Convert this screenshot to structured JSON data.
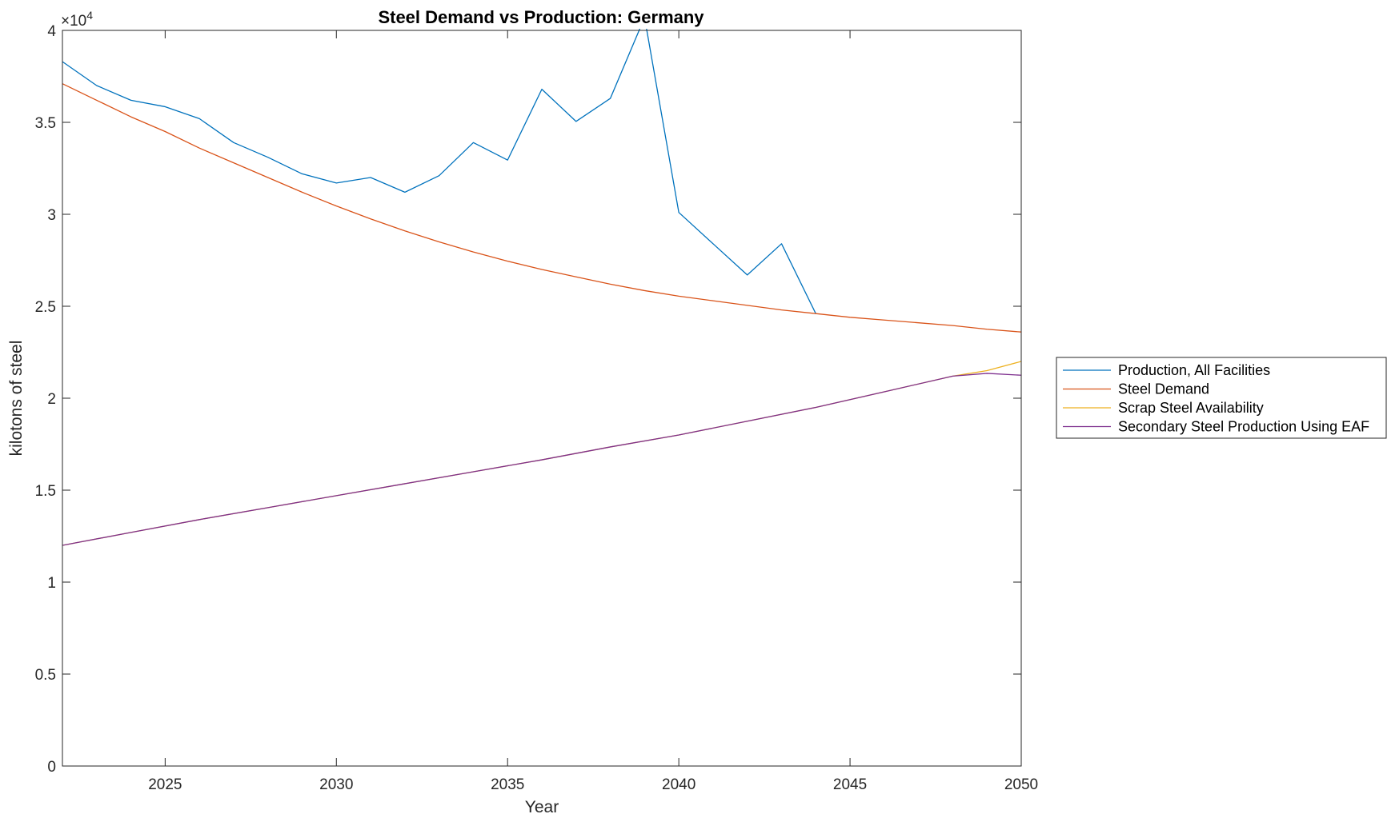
{
  "chart_data": {
    "type": "line",
    "title": "Steel Demand vs Production: Germany",
    "xlabel": "Year",
    "ylabel": "kilotons of steel",
    "y_exponent_label": "×10",
    "y_exponent_power": "4",
    "xlim": [
      2022,
      2050
    ],
    "ylim": [
      0,
      4.0
    ],
    "y_multiplier": 10000,
    "xticks": [
      2025,
      2030,
      2035,
      2040,
      2045,
      2050
    ],
    "xtick_labels": [
      "2025",
      "2030",
      "2035",
      "2040",
      "2045",
      "2050"
    ],
    "yticks": [
      0,
      0.5,
      1,
      1.5,
      2,
      2.5,
      3,
      3.5,
      4
    ],
    "ytick_labels": [
      "0",
      "0.5",
      "1",
      "1.5",
      "2",
      "2.5",
      "3",
      "3.5",
      "4"
    ],
    "grid": false,
    "legend_position": "outside-right",
    "series": [
      {
        "name": "Production, All Facilities",
        "color": "#0072BD",
        "x": [
          2022,
          2023,
          2024,
          2025,
          2026,
          2027,
          2028,
          2029,
          2030,
          2031,
          2032,
          2033,
          2034,
          2035,
          2036,
          2037,
          2038,
          2039,
          2040,
          2041,
          2042,
          2043,
          2044
        ],
        "y": [
          3.83,
          3.7,
          3.62,
          3.585,
          3.52,
          3.39,
          3.31,
          3.22,
          3.17,
          3.2,
          3.12,
          3.21,
          3.39,
          3.295,
          3.68,
          3.505,
          3.63,
          4.07,
          3.01,
          2.84,
          2.67,
          2.84,
          2.46
        ]
      },
      {
        "name": "Steel Demand",
        "color": "#D95319",
        "x": [
          2022,
          2023,
          2024,
          2025,
          2026,
          2027,
          2028,
          2029,
          2030,
          2031,
          2032,
          2033,
          2034,
          2035,
          2036,
          2037,
          2038,
          2039,
          2040,
          2041,
          2042,
          2043,
          2044,
          2045,
          2046,
          2047,
          2048,
          2049,
          2050
        ],
        "y": [
          3.71,
          3.62,
          3.53,
          3.45,
          3.36,
          3.28,
          3.2,
          3.12,
          3.045,
          2.975,
          2.91,
          2.85,
          2.795,
          2.745,
          2.7,
          2.66,
          2.62,
          2.585,
          2.555,
          2.53,
          2.505,
          2.48,
          2.46,
          2.44,
          2.425,
          2.41,
          2.395,
          2.375,
          2.36
        ]
      },
      {
        "name": "Scrap Steel Availability",
        "color": "#EDB120",
        "x": [
          2022,
          2024,
          2026,
          2028,
          2030,
          2032,
          2034,
          2036,
          2038,
          2040,
          2042,
          2044,
          2046,
          2048,
          2049,
          2050
        ],
        "y": [
          1.2,
          1.27,
          1.34,
          1.405,
          1.47,
          1.535,
          1.6,
          1.665,
          1.735,
          1.8,
          1.875,
          1.95,
          2.035,
          2.12,
          2.15,
          2.2
        ]
      },
      {
        "name": "Secondary Steel Production Using EAF",
        "color": "#7E2F8E",
        "x": [
          2022,
          2024,
          2026,
          2028,
          2030,
          2032,
          2034,
          2036,
          2038,
          2040,
          2042,
          2044,
          2046,
          2048,
          2049,
          2050
        ],
        "y": [
          1.2,
          1.27,
          1.34,
          1.405,
          1.47,
          1.535,
          1.6,
          1.665,
          1.735,
          1.8,
          1.875,
          1.95,
          2.035,
          2.12,
          2.135,
          2.125
        ]
      }
    ]
  }
}
